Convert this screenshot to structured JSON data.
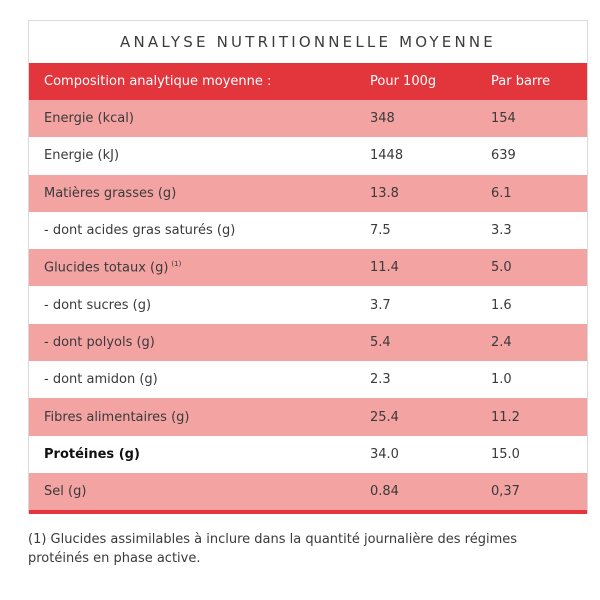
{
  "title": "ANALYSE NUTRITIONNELLE MOYENNE",
  "header": {
    "label": "Composition analytique moyenne :",
    "per100": "Pour 100g",
    "perBar": "Par barre"
  },
  "rows": [
    {
      "label": "Energie (kcal)",
      "per100": "348",
      "perBar": "154"
    },
    {
      "label": "Energie (kJ)",
      "per100": "1448",
      "perBar": "639"
    },
    {
      "label": "Matières grasses (g)",
      "per100": "13.8",
      "perBar": "6.1"
    },
    {
      "label": "- dont acides gras saturés (g)",
      "per100": "7.5",
      "perBar": "3.3"
    },
    {
      "label": "Glucides totaux (g)",
      "sup": "(1)",
      "per100": "11.4",
      "perBar": "5.0"
    },
    {
      "label": "- dont sucres (g)",
      "per100": "3.7",
      "perBar": "1.6"
    },
    {
      "label": "- dont polyols (g)",
      "per100": "5.4",
      "perBar": "2.4"
    },
    {
      "label": "- dont amidon (g)",
      "per100": "2.3",
      "perBar": "1.0"
    },
    {
      "label": "Fibres alimentaires (g)",
      "per100": "25.4",
      "perBar": "11.2"
    },
    {
      "label": "Protéines (g)",
      "per100": "34.0",
      "perBar": "15.0"
    },
    {
      "label": "Sel (g)",
      "per100": "0.84",
      "perBar": "0,37"
    }
  ],
  "footnote": "(1) Glucides assimilables à inclure dans la quantité journalière des régimes protéinés en phase active.",
  "colors": {
    "header_bg": "#e2363c",
    "stripe_bg": "#f4a3a3"
  }
}
